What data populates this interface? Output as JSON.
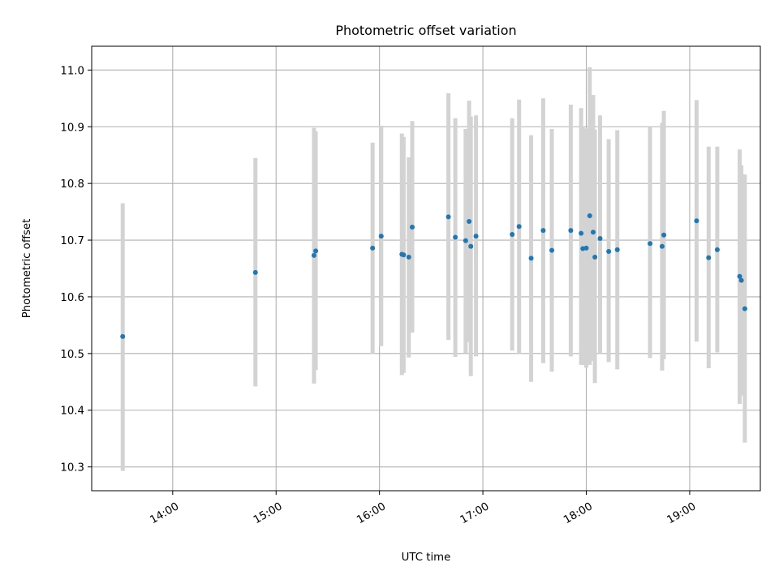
{
  "chart_data": {
    "type": "scatter",
    "title": "Photometric offset variation",
    "xlabel": "UTC time",
    "ylabel": "Photometric offset",
    "grid": true,
    "colors": {
      "point": "#1f77b4",
      "errorbar": "#d3d3d3",
      "grid": "#b0b0b0",
      "axis": "#000000"
    },
    "xlim": [
      "13:13",
      "19:41"
    ],
    "ylim": [
      10.258,
      11.042
    ],
    "x_ticks": [
      "14:00",
      "15:00",
      "16:00",
      "17:00",
      "18:00",
      "19:00"
    ],
    "y_ticks": [
      "10.3",
      "10.4",
      "10.5",
      "10.6",
      "10.7",
      "10.8",
      "10.9",
      "11.0"
    ],
    "points": [
      {
        "x": "13:31",
        "y": 10.53,
        "ylo": 10.293,
        "yhi": 10.765
      },
      {
        "x": "14:48",
        "y": 10.643,
        "ylo": 10.442,
        "yhi": 10.845
      },
      {
        "x": "15:22",
        "y": 10.673,
        "ylo": 10.447,
        "yhi": 10.898
      },
      {
        "x": "15:23",
        "y": 10.681,
        "ylo": 10.471,
        "yhi": 10.892
      },
      {
        "x": "15:56",
        "y": 10.686,
        "ylo": 10.5,
        "yhi": 10.872
      },
      {
        "x": "16:01",
        "y": 10.707,
        "ylo": 10.513,
        "yhi": 10.902
      },
      {
        "x": "16:13",
        "y": 10.675,
        "ylo": 10.462,
        "yhi": 10.888
      },
      {
        "x": "16:14",
        "y": 10.674,
        "ylo": 10.466,
        "yhi": 10.882
      },
      {
        "x": "16:17",
        "y": 10.67,
        "ylo": 10.493,
        "yhi": 10.846
      },
      {
        "x": "16:19",
        "y": 10.723,
        "ylo": 10.537,
        "yhi": 10.91
      },
      {
        "x": "16:40",
        "y": 10.741,
        "ylo": 10.524,
        "yhi": 10.959
      },
      {
        "x": "16:44",
        "y": 10.705,
        "ylo": 10.494,
        "yhi": 10.915
      },
      {
        "x": "16:50",
        "y": 10.699,
        "ylo": 10.501,
        "yhi": 10.896
      },
      {
        "x": "16:52",
        "y": 10.733,
        "ylo": 10.52,
        "yhi": 10.946
      },
      {
        "x": "16:53",
        "y": 10.689,
        "ylo": 10.46,
        "yhi": 10.918
      },
      {
        "x": "16:56",
        "y": 10.707,
        "ylo": 10.495,
        "yhi": 10.92
      },
      {
        "x": "17:17",
        "y": 10.71,
        "ylo": 10.505,
        "yhi": 10.915
      },
      {
        "x": "17:21",
        "y": 10.724,
        "ylo": 10.5,
        "yhi": 10.948
      },
      {
        "x": "17:28",
        "y": 10.668,
        "ylo": 10.45,
        "yhi": 10.885
      },
      {
        "x": "17:35",
        "y": 10.717,
        "ylo": 10.483,
        "yhi": 10.95
      },
      {
        "x": "17:40",
        "y": 10.682,
        "ylo": 10.468,
        "yhi": 10.896
      },
      {
        "x": "17:51",
        "y": 10.717,
        "ylo": 10.495,
        "yhi": 10.939
      },
      {
        "x": "17:57",
        "y": 10.712,
        "ylo": 10.48,
        "yhi": 10.933
      },
      {
        "x": "17:58",
        "y": 10.685,
        "ylo": 10.48,
        "yhi": 10.9
      },
      {
        "x": "18:00",
        "y": 10.686,
        "ylo": 10.475,
        "yhi": 10.897
      },
      {
        "x": "18:02",
        "y": 10.743,
        "ylo": 10.48,
        "yhi": 11.005
      },
      {
        "x": "18:04",
        "y": 10.714,
        "ylo": 10.487,
        "yhi": 10.956
      },
      {
        "x": "18:05",
        "y": 10.67,
        "ylo": 10.448,
        "yhi": 10.895
      },
      {
        "x": "18:08",
        "y": 10.703,
        "ylo": 10.5,
        "yhi": 10.92
      },
      {
        "x": "18:13",
        "y": 10.68,
        "ylo": 10.485,
        "yhi": 10.878
      },
      {
        "x": "18:18",
        "y": 10.683,
        "ylo": 10.472,
        "yhi": 10.894
      },
      {
        "x": "18:37",
        "y": 10.694,
        "ylo": 10.492,
        "yhi": 10.9
      },
      {
        "x": "18:44",
        "y": 10.689,
        "ylo": 10.47,
        "yhi": 10.907
      },
      {
        "x": "18:45",
        "y": 10.709,
        "ylo": 10.49,
        "yhi": 10.928
      },
      {
        "x": "19:04",
        "y": 10.734,
        "ylo": 10.521,
        "yhi": 10.947
      },
      {
        "x": "19:11",
        "y": 10.669,
        "ylo": 10.474,
        "yhi": 10.865
      },
      {
        "x": "19:16",
        "y": 10.683,
        "ylo": 10.502,
        "yhi": 10.865
      },
      {
        "x": "19:29",
        "y": 10.636,
        "ylo": 10.411,
        "yhi": 10.86
      },
      {
        "x": "19:30",
        "y": 10.629,
        "ylo": 10.426,
        "yhi": 10.832
      },
      {
        "x": "19:32",
        "y": 10.579,
        "ylo": 10.343,
        "yhi": 10.816
      }
    ]
  }
}
